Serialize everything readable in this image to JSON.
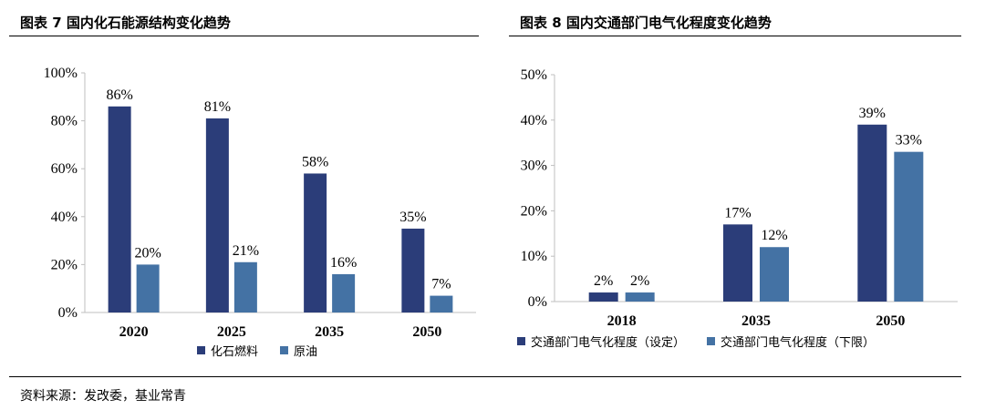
{
  "left": {
    "title": "图表 7  国内化石能源结构变化趋势",
    "legend": [
      {
        "label": "化石燃料",
        "color": "#2b3d79"
      },
      {
        "label": "原油",
        "color": "#4472a4"
      }
    ]
  },
  "right": {
    "title": "图表 8  国内交通部门电气化程度变化趋势",
    "legend": [
      {
        "label": "交通部门电气化程度（设定）",
        "color": "#2b3d79"
      },
      {
        "label": "交通部门电气化程度（下限）",
        "color": "#4472a4"
      }
    ]
  },
  "source": "资料来源：发改委，基业常青",
  "chart_data": [
    {
      "type": "bar",
      "title": "国内化石能源结构变化趋势",
      "categories": [
        "2020",
        "2025",
        "2035",
        "2050"
      ],
      "series": [
        {
          "name": "化石燃料",
          "values": [
            86,
            81,
            58,
            35
          ],
          "labels": [
            "86%",
            "81%",
            "58%",
            "35%"
          ],
          "color": "#2b3d79"
        },
        {
          "name": "原油",
          "values": [
            20,
            21,
            16,
            7
          ],
          "labels": [
            "20%",
            "21%",
            "16%",
            "7%"
          ],
          "color": "#4472a4"
        }
      ],
      "ylim": [
        0,
        100
      ],
      "yticks": [
        "0%",
        "20%",
        "40%",
        "60%",
        "80%",
        "100%"
      ],
      "grid": false,
      "legend_position": "bottom"
    },
    {
      "type": "bar",
      "title": "国内交通部门电气化程度变化趋势",
      "categories": [
        "2018",
        "2035",
        "2050"
      ],
      "series": [
        {
          "name": "交通部门电气化程度（设定）",
          "values": [
            2,
            17,
            39
          ],
          "labels": [
            "2%",
            "17%",
            "39%"
          ],
          "color": "#2b3d79"
        },
        {
          "name": "交通部门电气化程度（下限）",
          "values": [
            2,
            12,
            33
          ],
          "labels": [
            "2%",
            "12%",
            "33%"
          ],
          "color": "#4472a4"
        }
      ],
      "ylim": [
        0,
        50
      ],
      "yticks": [
        "0%",
        "10%",
        "20%",
        "30%",
        "40%",
        "50%"
      ],
      "grid": false,
      "legend_position": "bottom"
    }
  ]
}
